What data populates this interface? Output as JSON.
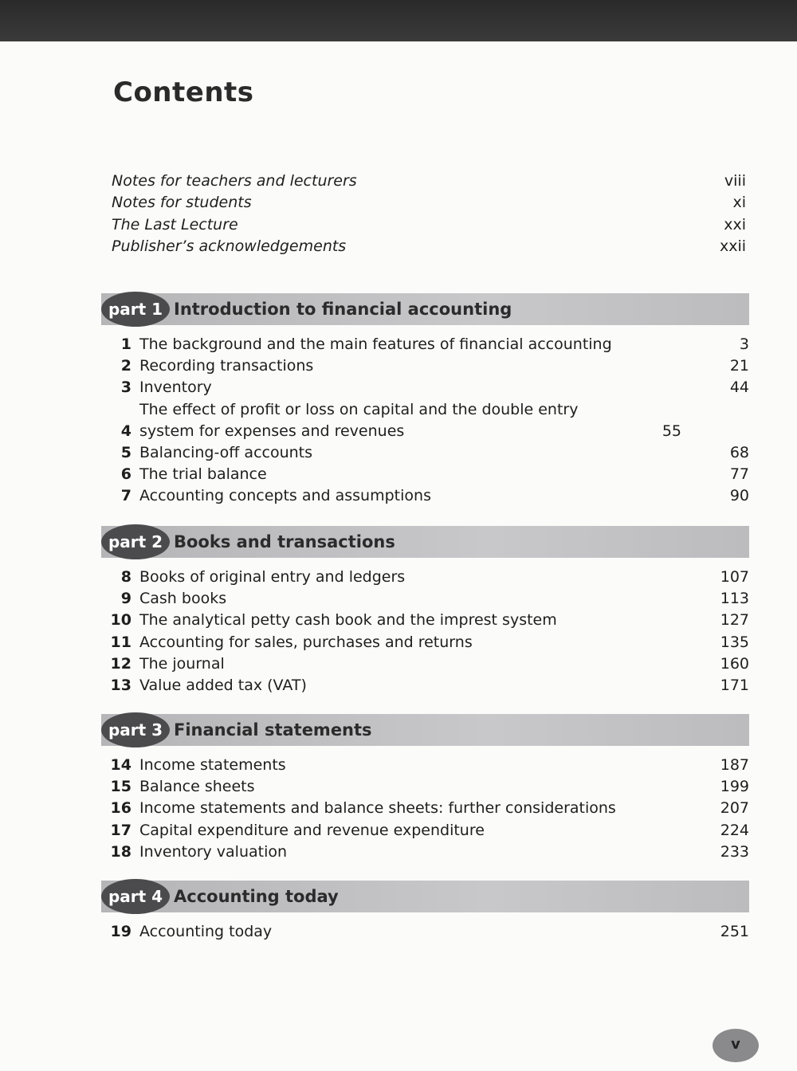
{
  "title": "Contents",
  "prelims": [
    {
      "label": "Notes for teachers and lecturers",
      "page": "viii"
    },
    {
      "label": "Notes for students",
      "page": "xi"
    },
    {
      "label": "The Last Lecture",
      "page": "xxi"
    },
    {
      "label": "Publisher’s acknowledgements",
      "page": "xxii"
    }
  ],
  "parts": [
    {
      "tag": "part 1",
      "title": "Introduction to financial accounting",
      "chapters": [
        {
          "num": "1",
          "title": "The background and the main features of financial accounting",
          "page": "3"
        },
        {
          "num": "2",
          "title": "Recording transactions",
          "page": "21"
        },
        {
          "num": "3",
          "title": "Inventory",
          "page": "44"
        },
        {
          "num": "4",
          "title": "The effect of profit or loss on capital and the double entry system for expenses and revenues",
          "page": "55"
        },
        {
          "num": "5",
          "title": "Balancing-off accounts",
          "page": "68"
        },
        {
          "num": "6",
          "title": "The trial balance",
          "page": "77"
        },
        {
          "num": "7",
          "title": "Accounting concepts and assumptions",
          "page": "90"
        }
      ]
    },
    {
      "tag": "part 2",
      "title": "Books and transactions",
      "chapters": [
        {
          "num": "8",
          "title": "Books of original entry and ledgers",
          "page": "107"
        },
        {
          "num": "9",
          "title": "Cash books",
          "page": "113"
        },
        {
          "num": "10",
          "title": "The analytical petty cash book and the imprest system",
          "page": "127"
        },
        {
          "num": "11",
          "title": "Accounting for sales, purchases and returns",
          "page": "135"
        },
        {
          "num": "12",
          "title": "The journal",
          "page": "160"
        },
        {
          "num": "13",
          "title": "Value added tax (VAT)",
          "page": "171"
        }
      ]
    },
    {
      "tag": "part 3",
      "title": "Financial statements",
      "chapters": [
        {
          "num": "14",
          "title": "Income statements",
          "page": "187"
        },
        {
          "num": "15",
          "title": "Balance sheets",
          "page": "199"
        },
        {
          "num": "16",
          "title": "Income statements and balance sheets: further considerations",
          "page": "207"
        },
        {
          "num": "17",
          "title": "Capital expenditure and revenue expenditure",
          "page": "224"
        },
        {
          "num": "18",
          "title": "Inventory valuation",
          "page": "233"
        }
      ]
    },
    {
      "tag": "part 4",
      "title": "Accounting today",
      "chapters": [
        {
          "num": "19",
          "title": "Accounting today",
          "page": "251"
        }
      ]
    }
  ],
  "folio": "v"
}
